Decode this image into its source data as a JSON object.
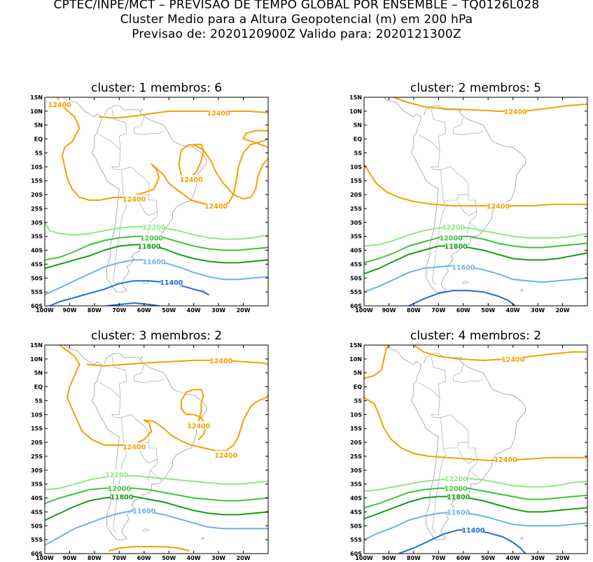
{
  "header": {
    "line1": "CPTEC/INPE/MCT – PREVISAO DE TEMPO GLOBAL POR ENSEMBLE – TQ0126L028",
    "line2": "Cluster Medio para a Altura Geopotencial (m) em 200 hPa",
    "line3": "Previsao de: 2020120900Z    Valido para: 2020121300Z"
  },
  "colors": {
    "c12400": "#f5a000",
    "c12200": "#8be87f",
    "c12000": "#3cc43c",
    "c11800": "#159d15",
    "c11600": "#6fb0ec",
    "c11400": "#1e6fd8",
    "coast": "#9a9a9a"
  },
  "chart_data": [
    {
      "type": "contour",
      "title": "cluster: 1   membros: 6",
      "x_ticks": [
        "100W",
        "90W",
        "80W",
        "70W",
        "60W",
        "50W",
        "40W",
        "30W",
        "20W"
      ],
      "y_ticks": [
        "15N",
        "10N",
        "5N",
        "EQ",
        "5S",
        "10S",
        "15S",
        "20S",
        "25S",
        "30S",
        "35S",
        "40S",
        "45S",
        "50S",
        "55S",
        "60S"
      ],
      "xlim": [
        -100,
        -10
      ],
      "ylim": [
        -60,
        15
      ],
      "contour_labels": [
        {
          "text": "12400",
          "lon": -94,
          "lat": 12.5,
          "level": "c12400"
        },
        {
          "text": "12400",
          "lon": -30,
          "lat": 9.5,
          "level": "c12400"
        },
        {
          "text": "12400",
          "lon": -41,
          "lat": -14.5,
          "level": "c12400"
        },
        {
          "text": "12400",
          "lon": -64,
          "lat": -21.5,
          "level": "c12400"
        },
        {
          "text": "12400",
          "lon": -31,
          "lat": -24,
          "level": "c12400"
        },
        {
          "text": "12200",
          "lon": -56,
          "lat": -31.5,
          "level": "c12200"
        },
        {
          "text": "12000",
          "lon": -57,
          "lat": -35.5,
          "level": "c12000"
        },
        {
          "text": "11800",
          "lon": -58,
          "lat": -38.5,
          "level": "c11800"
        },
        {
          "text": "11600",
          "lon": -56,
          "lat": -44,
          "level": "c11600"
        },
        {
          "text": "11400",
          "lon": -49,
          "lat": -51.5,
          "level": "c11400"
        }
      ]
    },
    {
      "type": "contour",
      "title": "cluster: 2   membros: 5",
      "x_ticks": [
        "100W",
        "90W",
        "80W",
        "70W",
        "60W",
        "50W",
        "40W",
        "30W",
        "20W"
      ],
      "y_ticks": [
        "15N",
        "10N",
        "5N",
        "EQ",
        "5S",
        "10S",
        "15S",
        "20S",
        "25S",
        "30S",
        "35S",
        "40S",
        "45S",
        "50S",
        "55S",
        "60S"
      ],
      "xlim": [
        -100,
        -10
      ],
      "ylim": [
        -60,
        15
      ],
      "contour_labels": [
        {
          "text": "12400",
          "lon": -39,
          "lat": 10,
          "level": "c12400"
        },
        {
          "text": "12400",
          "lon": -46,
          "lat": -24,
          "level": "c12400"
        },
        {
          "text": "12200",
          "lon": -64,
          "lat": -31.5,
          "level": "c12200"
        },
        {
          "text": "12000",
          "lon": -65,
          "lat": -35.5,
          "level": "c12000"
        },
        {
          "text": "11800",
          "lon": -63,
          "lat": -38.5,
          "level": "c11800"
        },
        {
          "text": "11600",
          "lon": -60,
          "lat": -46,
          "level": "c11600"
        }
      ]
    },
    {
      "type": "contour",
      "title": "cluster: 3   membros: 2",
      "x_ticks": [
        "100W",
        "90W",
        "80W",
        "70W",
        "60W",
        "50W",
        "40W",
        "30W",
        "20W"
      ],
      "y_ticks": [
        "15N",
        "10N",
        "5N",
        "EQ",
        "5S",
        "10S",
        "15S",
        "20S",
        "25S",
        "30S",
        "35S",
        "40S",
        "45S",
        "50S",
        "55S",
        "60S"
      ],
      "xlim": [
        -100,
        -10
      ],
      "ylim": [
        -60,
        15
      ],
      "contour_labels": [
        {
          "text": "12400",
          "lon": -29,
          "lat": 9.5,
          "level": "c12400"
        },
        {
          "text": "12400",
          "lon": -38,
          "lat": -14,
          "level": "c12400"
        },
        {
          "text": "12400",
          "lon": -64,
          "lat": -21.5,
          "level": "c12400"
        },
        {
          "text": "12400",
          "lon": -27,
          "lat": -24.5,
          "level": "c12400"
        },
        {
          "text": "12200",
          "lon": -71,
          "lat": -31.5,
          "level": "c12200"
        },
        {
          "text": "12000",
          "lon": -70,
          "lat": -36.5,
          "level": "c12000"
        },
        {
          "text": "11800",
          "lon": -69,
          "lat": -39.5,
          "level": "c11800"
        },
        {
          "text": "11600",
          "lon": -60,
          "lat": -44.5,
          "level": "c11600"
        }
      ]
    },
    {
      "type": "contour",
      "title": "cluster: 4   membros: 2",
      "x_ticks": [
        "100W",
        "90W",
        "80W",
        "70W",
        "60W",
        "50W",
        "40W",
        "30W",
        "20W"
      ],
      "y_ticks": [
        "15N",
        "10N",
        "5N",
        "EQ",
        "5S",
        "10S",
        "15S",
        "20S",
        "25S",
        "30S",
        "35S",
        "40S",
        "45S",
        "50S",
        "55S",
        "60S"
      ],
      "xlim": [
        -100,
        -10
      ],
      "ylim": [
        -60,
        15
      ],
      "contour_labels": [
        {
          "text": "12400",
          "lon": -40,
          "lat": 10,
          "level": "c12400"
        },
        {
          "text": "12400",
          "lon": -43,
          "lat": -26,
          "level": "c12400"
        },
        {
          "text": "12200",
          "lon": -63,
          "lat": -33,
          "level": "c12200"
        },
        {
          "text": "12000",
          "lon": -63,
          "lat": -36.5,
          "level": "c12000"
        },
        {
          "text": "11800",
          "lon": -62,
          "lat": -39.5,
          "level": "c11800"
        },
        {
          "text": "11600",
          "lon": -62,
          "lat": -45,
          "level": "c11600"
        },
        {
          "text": "11400",
          "lon": -56,
          "lat": -51.5,
          "level": "c11400"
        }
      ]
    }
  ]
}
